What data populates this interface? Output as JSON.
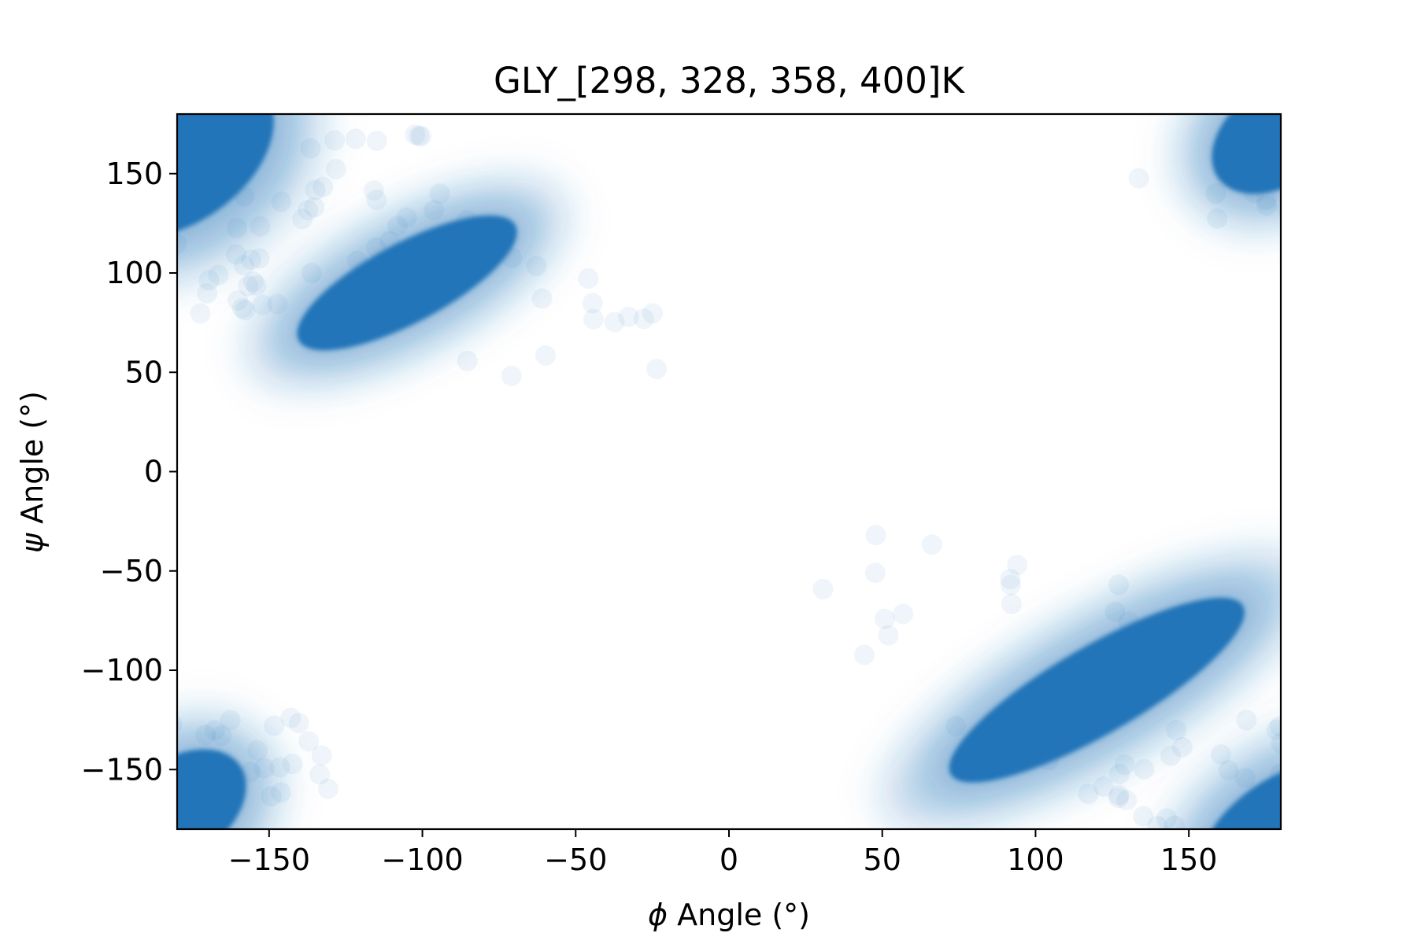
{
  "chart_data": {
    "type": "scatter",
    "title": "GLY_[298, 328, 358, 400]K",
    "xlabel": {
      "symbol": "ϕ",
      "text": " Angle (°)"
    },
    "ylabel": {
      "symbol": "ψ",
      "text": " Angle (°)"
    },
    "xlim": [
      -180,
      180
    ],
    "ylim": [
      -180,
      180
    ],
    "xticks": [
      {
        "value": -150,
        "label": "−150"
      },
      {
        "value": -100,
        "label": "−100"
      },
      {
        "value": -50,
        "label": "−50"
      },
      {
        "value": 0,
        "label": "0"
      },
      {
        "value": 50,
        "label": "50"
      },
      {
        "value": 100,
        "label": "100"
      },
      {
        "value": 150,
        "label": "150"
      }
    ],
    "yticks": [
      {
        "value": 150,
        "label": "150"
      },
      {
        "value": 100,
        "label": "100"
      },
      {
        "value": 50,
        "label": "50"
      },
      {
        "value": 0,
        "label": "0"
      },
      {
        "value": -50,
        "label": "−50"
      },
      {
        "value": -100,
        "label": "−100"
      },
      {
        "value": -150,
        "label": "−150"
      }
    ],
    "grid": false,
    "legend": "none",
    "series_color": "#2274b8",
    "marker_alpha": 0.03,
    "density_regions": [
      {
        "center": [
          -105,
          95
        ],
        "spread": [
          40,
          20
        ],
        "angle_deg": -28
      },
      {
        "center": [
          -180,
          160
        ],
        "spread": [
          35,
          35
        ],
        "angle_deg": -35
      },
      {
        "center": [
          120,
          -110
        ],
        "spread": [
          55,
          22
        ],
        "angle_deg": -30
      },
      {
        "center": [
          180,
          -180
        ],
        "spread": [
          30,
          25
        ],
        "angle_deg": -35
      },
      {
        "center": [
          180,
          170
        ],
        "spread": [
          25,
          25
        ],
        "angle_deg": -35
      },
      {
        "center": [
          -180,
          -170
        ],
        "spread": [
          25,
          25
        ],
        "angle_deg": -35
      }
    ]
  }
}
